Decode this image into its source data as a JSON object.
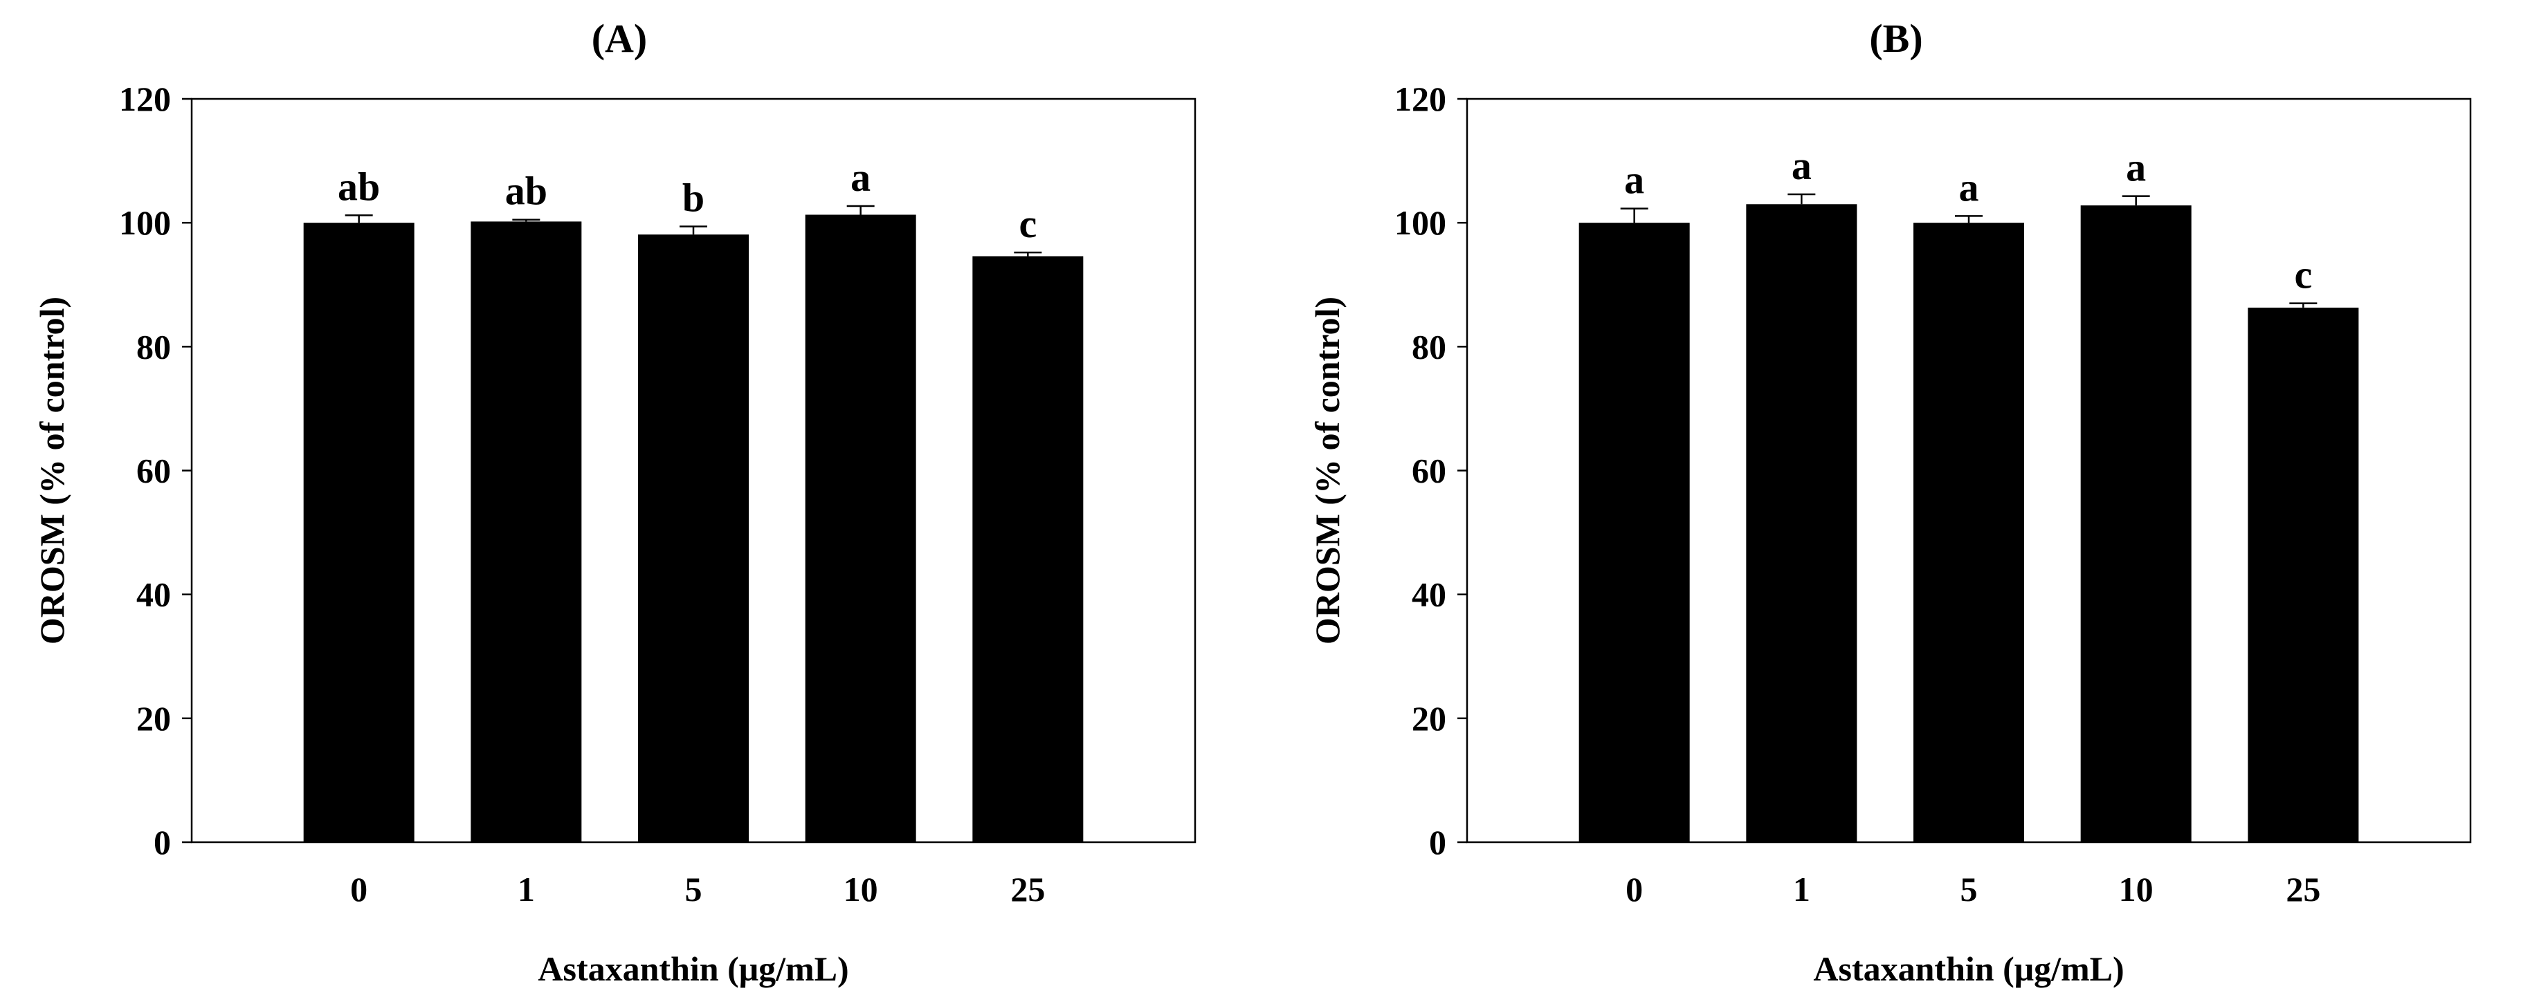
{
  "chart_data": [
    {
      "panel_label": "(A)",
      "type": "bar",
      "categories": [
        "0",
        "1",
        "5",
        "10",
        "25"
      ],
      "values": [
        100,
        100.2,
        98.1,
        101.3,
        94.6
      ],
      "errors": [
        1.2,
        0.3,
        1.3,
        1.4,
        0.6
      ],
      "significance": [
        "ab",
        "ab",
        "b",
        "a",
        "c"
      ],
      "xlabel": "Astaxanthin (μg/mL)",
      "ylabel": "OROSM (% of control)",
      "ylim": [
        0,
        120
      ],
      "yticks": [
        "0",
        "20",
        "40",
        "60",
        "80",
        "100",
        "120"
      ],
      "bar_color": "#000000"
    },
    {
      "panel_label": "(B)",
      "type": "bar",
      "categories": [
        "0",
        "1",
        "5",
        "10",
        "25"
      ],
      "values": [
        100,
        103,
        100,
        102.8,
        86.3
      ],
      "errors": [
        2.3,
        1.6,
        1.1,
        1.5,
        0.7
      ],
      "significance": [
        "a",
        "a",
        "a",
        "a",
        "c"
      ],
      "xlabel": "Astaxanthin (μg/mL)",
      "ylabel": "OROSM (% of control)",
      "ylim": [
        0,
        120
      ],
      "yticks": [
        "0",
        "20",
        "40",
        "60",
        "80",
        "100",
        "120"
      ],
      "bar_color": "#000000"
    }
  ]
}
